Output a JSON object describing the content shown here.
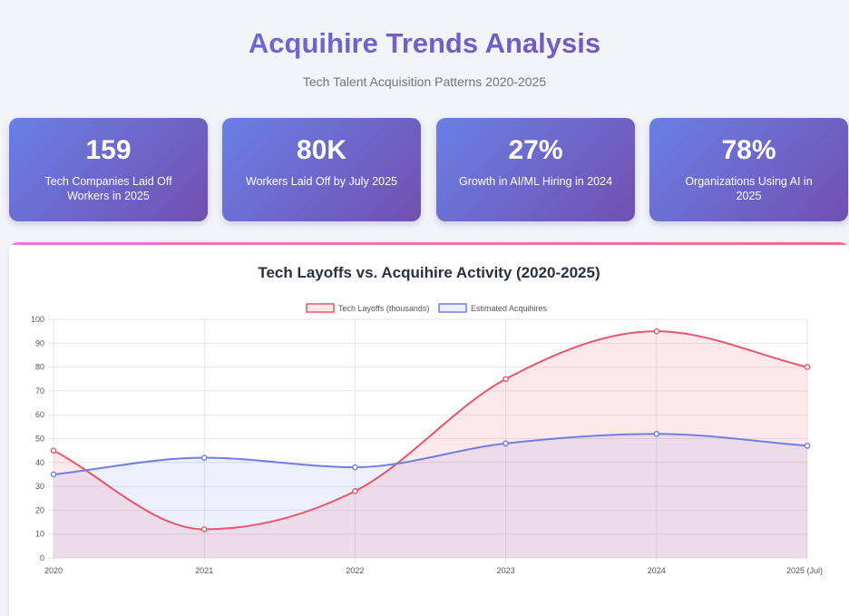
{
  "header": {
    "title": "Acquihire Trends Analysis",
    "subtitle": "Tech Talent Acquisition Patterns 2020-2025"
  },
  "stats": [
    {
      "value": "159",
      "label": "Tech Companies Laid Off Workers in 2025"
    },
    {
      "value": "80K",
      "label": "Workers Laid Off by July 2025"
    },
    {
      "value": "27%",
      "label": "Growth in AI/ML Hiring in 2024"
    },
    {
      "value": "78%",
      "label": "Organizations Using AI in 2025"
    }
  ],
  "chart_data": {
    "type": "line",
    "title": "Tech Layoffs vs. Acquihire Activity (2020-2025)",
    "categories": [
      "2020",
      "2021",
      "2022",
      "2023",
      "2024",
      "2025 (Jul)"
    ],
    "series": [
      {
        "name": "Tech Layoffs (thousands)",
        "values": [
          45,
          12,
          28,
          75,
          95,
          80
        ],
        "color": "#e8566b",
        "fill": "rgba(240, 110, 130, 0.15)"
      },
      {
        "name": "Estimated Acquihires",
        "values": [
          35,
          42,
          38,
          48,
          52,
          47
        ],
        "color": "#6f7fe0",
        "fill": "rgba(120, 130, 230, 0.13)"
      }
    ],
    "ylim": [
      0,
      100
    ],
    "yticks": [
      0,
      10,
      20,
      30,
      40,
      50,
      60,
      70,
      80,
      90,
      100
    ],
    "grid": true,
    "area_fill": true,
    "legend": "top-center"
  }
}
